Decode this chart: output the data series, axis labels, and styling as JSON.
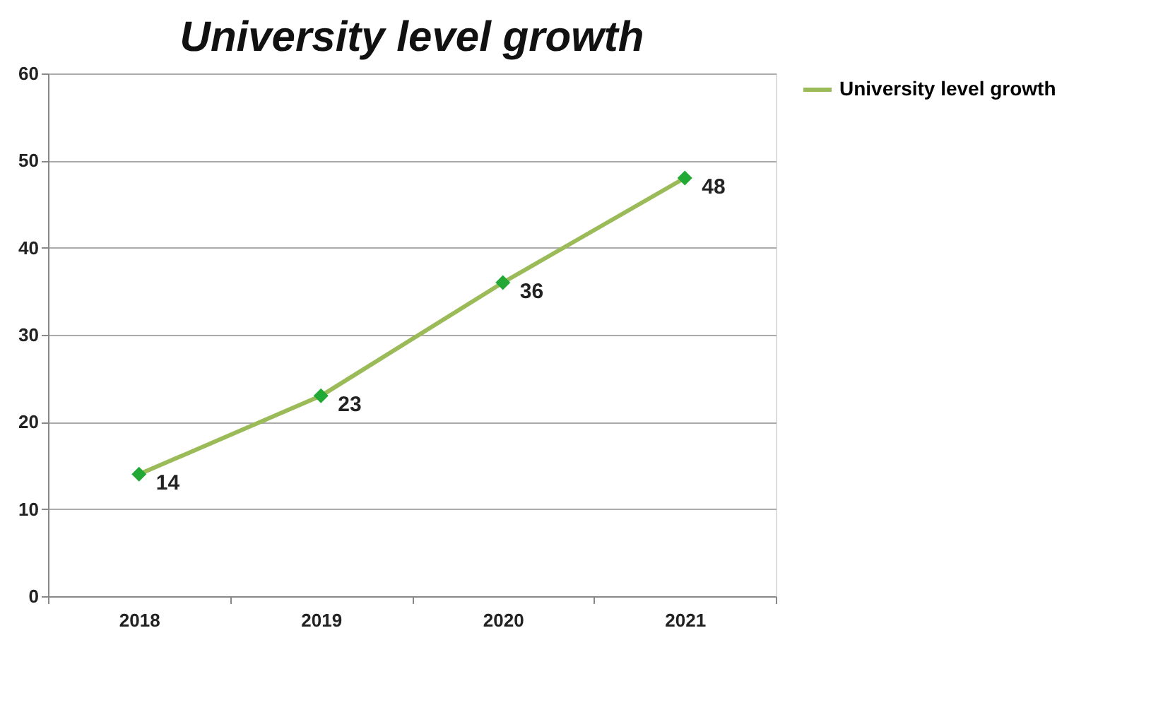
{
  "chart_data": {
    "type": "line",
    "title": "University level growth",
    "categories": [
      "2018",
      "2019",
      "2020",
      "2021"
    ],
    "series": [
      {
        "name": "University level growth",
        "color": "#9bbb59",
        "colors": [
          "#22a834",
          "#22a834",
          "#22a834",
          "#22a834"
        ],
        "values": [
          14,
          23,
          36,
          48
        ]
      }
    ],
    "ylim": [
      0,
      60
    ],
    "yticks": [
      0,
      10,
      20,
      30,
      40,
      50,
      60
    ],
    "grid": "y",
    "legend": "right",
    "marker": "diamond",
    "data_labels": true
  }
}
